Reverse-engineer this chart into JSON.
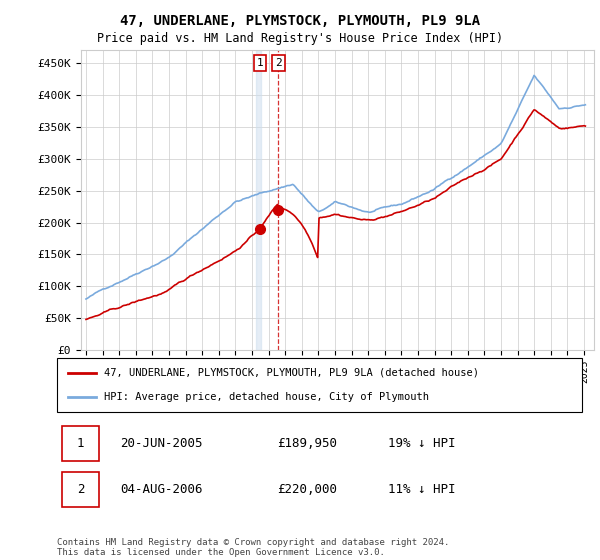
{
  "title": "47, UNDERLANE, PLYMSTOCK, PLYMOUTH, PL9 9LA",
  "subtitle": "Price paid vs. HM Land Registry's House Price Index (HPI)",
  "ylabel_ticks": [
    "£0",
    "£50K",
    "£100K",
    "£150K",
    "£200K",
    "£250K",
    "£300K",
    "£350K",
    "£400K",
    "£450K"
  ],
  "ytick_values": [
    0,
    50000,
    100000,
    150000,
    200000,
    250000,
    300000,
    350000,
    400000,
    450000
  ],
  "ylim": [
    0,
    470000
  ],
  "legend_line1": "47, UNDERLANE, PLYMSTOCK, PLYMOUTH, PL9 9LA (detached house)",
  "legend_line2": "HPI: Average price, detached house, City of Plymouth",
  "table_row1": [
    "1",
    "20-JUN-2005",
    "£189,950",
    "19% ↓ HPI"
  ],
  "table_row2": [
    "2",
    "04-AUG-2006",
    "£220,000",
    "11% ↓ HPI"
  ],
  "footer": "Contains HM Land Registry data © Crown copyright and database right 2024.\nThis data is licensed under the Open Government Licence v3.0.",
  "hpi_color": "#7aaadd",
  "price_color": "#cc0000",
  "marker_color": "#cc0000",
  "vline_color": "#cc0000",
  "vline1_color": "#bbccdd",
  "background_color": "#ffffff",
  "grid_color": "#cccccc",
  "sale1_x": 2005.47,
  "sale1_y": 189950,
  "sale2_x": 2006.59,
  "sale2_y": 220000,
  "xmin": 1995.0,
  "xmax": 2025.5
}
